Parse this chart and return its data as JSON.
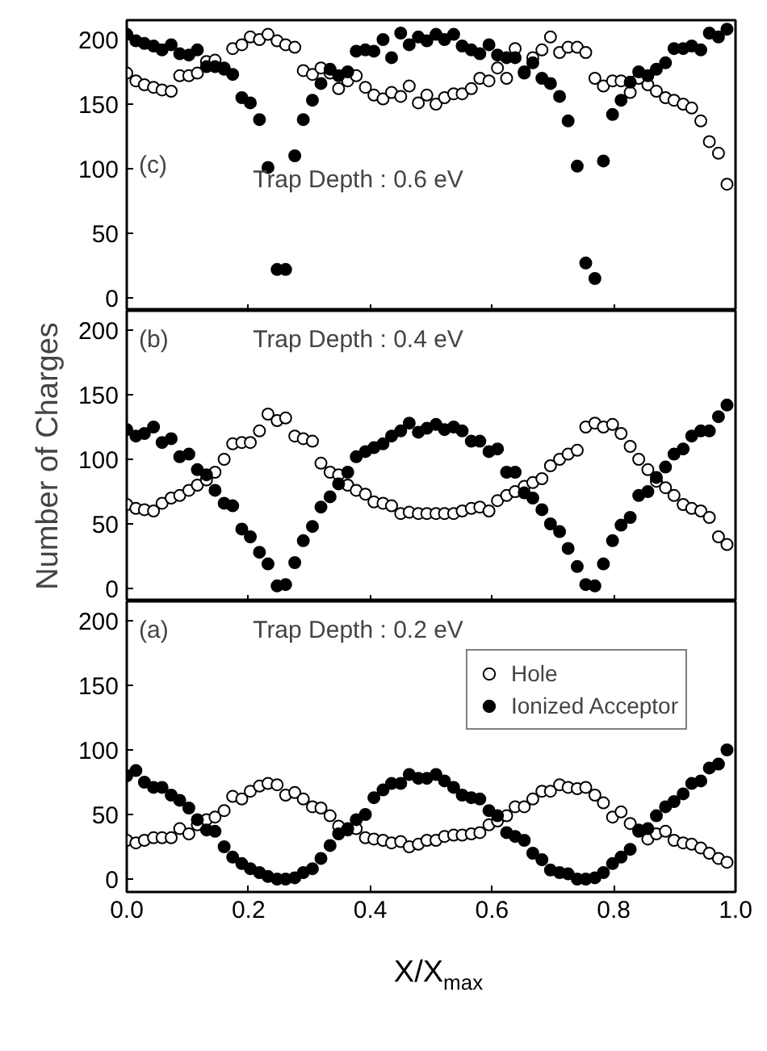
{
  "chart_data": [
    {
      "type": "scatter",
      "annotations": [
        "(c)",
        "Trap Depth : 0.6 eV"
      ],
      "xlim": [
        0,
        1
      ],
      "ylim": [
        -10,
        215
      ],
      "xticks": [
        {
          "value": 0,
          "label": null
        },
        {
          "value": 0.2,
          "label": null
        },
        {
          "value": 0.4,
          "label": null
        },
        {
          "value": 0.6,
          "label": null
        },
        {
          "value": 0.8,
          "label": null
        },
        {
          "value": 1,
          "label": null
        }
      ],
      "yticks": [
        0,
        50,
        100,
        150,
        200
      ],
      "tick_labels": "y",
      "marker": "circle",
      "grid": false,
      "legend": false,
      "x": [
        0.0,
        0.015,
        0.029,
        0.044,
        0.058,
        0.073,
        0.087,
        0.102,
        0.116,
        0.131,
        0.145,
        0.16,
        0.174,
        0.189,
        0.203,
        0.218,
        0.232,
        0.247,
        0.261,
        0.276,
        0.29,
        0.305,
        0.319,
        0.334,
        0.348,
        0.363,
        0.377,
        0.392,
        0.406,
        0.421,
        0.435,
        0.45,
        0.464,
        0.479,
        0.493,
        0.508,
        0.522,
        0.537,
        0.551,
        0.566,
        0.58,
        0.595,
        0.609,
        0.624,
        0.638,
        0.653,
        0.667,
        0.682,
        0.696,
        0.711,
        0.725,
        0.74,
        0.754,
        0.769,
        0.783,
        0.798,
        0.812,
        0.827,
        0.841,
        0.856,
        0.87,
        0.885,
        0.899,
        0.914,
        0.928,
        0.943,
        0.957,
        0.972,
        0.986
      ],
      "series": [
        {
          "color": "#000000",
          "values": [
            174,
            168,
            165,
            163,
            161,
            160,
            172,
            172,
            174,
            183,
            184,
            178,
            193,
            196,
            202,
            200,
            204,
            199,
            196,
            194,
            176,
            173,
            178,
            174,
            162,
            168,
            172,
            163,
            157,
            154,
            159,
            156,
            164,
            151,
            157,
            150,
            155,
            158,
            158,
            162,
            170,
            168,
            178,
            170,
            193,
            175,
            186,
            192,
            202,
            190,
            194,
            194,
            190,
            170,
            164,
            168,
            168,
            159,
            170,
            165,
            160,
            155,
            153,
            150,
            147,
            137,
            121,
            112,
            88
          ]
        },
        {
          "color": "#000000",
          "values": [
            204,
            199,
            197,
            195,
            192,
            196,
            189,
            188,
            192,
            179,
            179,
            177,
            173,
            155,
            151,
            138,
            101,
            22,
            22,
            110,
            138,
            153,
            166,
            177,
            172,
            175,
            191,
            192,
            191,
            200,
            186,
            205,
            196,
            202,
            199,
            204,
            200,
            204,
            195,
            192,
            189,
            196,
            188,
            186,
            186,
            174,
            182,
            170,
            166,
            156,
            137,
            102,
            27,
            15,
            106,
            142,
            153,
            167,
            175,
            172,
            177,
            182,
            193,
            193,
            195,
            192,
            205,
            202,
            208
          ]
        }
      ]
    },
    {
      "type": "scatter",
      "ylabel": "Number of Charges",
      "annotations": [
        "(b)",
        "Trap Depth : 0.4 eV"
      ],
      "xlim": [
        0,
        1
      ],
      "ylim": [
        -10,
        215
      ],
      "xticks": [
        {
          "value": 0,
          "label": null
        },
        {
          "value": 0.2,
          "label": null
        },
        {
          "value": 0.4,
          "label": null
        },
        {
          "value": 0.6,
          "label": null
        },
        {
          "value": 0.8,
          "label": null
        },
        {
          "value": 1,
          "label": null
        }
      ],
      "yticks": [
        0,
        50,
        100,
        150,
        200
      ],
      "tick_labels": "y",
      "marker": "circle",
      "grid": false,
      "legend": false,
      "x": [
        0.0,
        0.015,
        0.029,
        0.044,
        0.058,
        0.073,
        0.087,
        0.102,
        0.116,
        0.131,
        0.145,
        0.16,
        0.174,
        0.189,
        0.203,
        0.218,
        0.232,
        0.247,
        0.261,
        0.276,
        0.29,
        0.305,
        0.319,
        0.334,
        0.348,
        0.363,
        0.377,
        0.392,
        0.406,
        0.421,
        0.435,
        0.45,
        0.464,
        0.479,
        0.493,
        0.508,
        0.522,
        0.537,
        0.551,
        0.566,
        0.58,
        0.595,
        0.609,
        0.624,
        0.638,
        0.653,
        0.667,
        0.682,
        0.696,
        0.711,
        0.725,
        0.74,
        0.754,
        0.769,
        0.783,
        0.798,
        0.812,
        0.827,
        0.841,
        0.856,
        0.87,
        0.885,
        0.899,
        0.914,
        0.928,
        0.943,
        0.957,
        0.972,
        0.986
      ],
      "series": [
        {
          "color": "#000000",
          "values": [
            65,
            62,
            61,
            60,
            66,
            70,
            72,
            76,
            80,
            84,
            90,
            100,
            112,
            113,
            113,
            122,
            135,
            130,
            132,
            118,
            116,
            114,
            97,
            90,
            88,
            80,
            76,
            73,
            67,
            66,
            64,
            58,
            59,
            58,
            58,
            58,
            58,
            58,
            60,
            62,
            63,
            60,
            68,
            72,
            75,
            79,
            82,
            85,
            95,
            100,
            104,
            107,
            125,
            128,
            125,
            127,
            120,
            110,
            100,
            92,
            83,
            78,
            72,
            65,
            62,
            60,
            55,
            40,
            34
          ]
        },
        {
          "color": "#000000",
          "values": [
            123,
            118,
            120,
            125,
            113,
            116,
            102,
            104,
            92,
            88,
            76,
            66,
            64,
            46,
            40,
            28,
            19,
            2,
            3,
            20,
            37,
            48,
            63,
            71,
            81,
            90,
            102,
            106,
            109,
            112,
            118,
            122,
            128,
            121,
            124,
            127,
            123,
            125,
            122,
            114,
            114,
            106,
            108,
            90,
            90,
            74,
            70,
            61,
            50,
            44,
            31,
            17,
            3,
            2,
            19,
            37,
            49,
            55,
            72,
            75,
            86,
            94,
            104,
            108,
            118,
            122,
            122,
            133,
            142
          ]
        }
      ]
    },
    {
      "type": "scatter",
      "xlabel": "X/X$_{max}$",
      "annotations": [
        "(a)",
        "Trap Depth : 0.2 eV"
      ],
      "xlim": [
        0,
        1
      ],
      "ylim": [
        -10,
        215
      ],
      "xticks": [
        {
          "value": 0,
          "label": "0.0"
        },
        {
          "value": 0.2,
          "label": "0.2"
        },
        {
          "value": 0.4,
          "label": "0.4"
        },
        {
          "value": 0.6,
          "label": "0.6"
        },
        {
          "value": 0.8,
          "label": "0.8"
        },
        {
          "value": 1,
          "label": "1.0"
        }
      ],
      "yticks": [
        0,
        50,
        100,
        150,
        200
      ],
      "marker": "circle",
      "grid": false,
      "legend": "top right",
      "x": [
        0.0,
        0.015,
        0.029,
        0.044,
        0.058,
        0.073,
        0.087,
        0.102,
        0.116,
        0.131,
        0.145,
        0.16,
        0.174,
        0.189,
        0.203,
        0.218,
        0.232,
        0.247,
        0.261,
        0.276,
        0.29,
        0.305,
        0.319,
        0.334,
        0.348,
        0.363,
        0.377,
        0.392,
        0.406,
        0.421,
        0.435,
        0.45,
        0.464,
        0.479,
        0.493,
        0.508,
        0.522,
        0.537,
        0.551,
        0.566,
        0.58,
        0.595,
        0.609,
        0.624,
        0.638,
        0.653,
        0.667,
        0.682,
        0.696,
        0.711,
        0.725,
        0.74,
        0.754,
        0.769,
        0.783,
        0.798,
        0.812,
        0.827,
        0.841,
        0.856,
        0.87,
        0.885,
        0.899,
        0.914,
        0.928,
        0.943,
        0.957,
        0.972,
        0.986
      ],
      "series": [
        {
          "name": "Hole",
          "color": "#000000",
          "values": [
            30,
            28,
            30,
            32,
            32,
            32,
            39,
            35,
            42,
            46,
            48,
            53,
            64,
            62,
            68,
            72,
            74,
            73,
            65,
            67,
            62,
            56,
            55,
            49,
            41,
            38,
            39,
            32,
            31,
            30,
            28,
            29,
            25,
            27,
            30,
            30,
            33,
            34,
            34,
            35,
            36,
            42,
            45,
            49,
            56,
            56,
            62,
            68,
            68,
            73,
            71,
            70,
            71,
            65,
            59,
            48,
            52,
            43,
            37,
            31,
            35,
            37,
            30,
            28,
            27,
            24,
            20,
            16,
            13
          ]
        },
        {
          "name": "Ionized Acceptor",
          "color": "#000000",
          "values": [
            80,
            84,
            75,
            71,
            71,
            65,
            61,
            55,
            46,
            38,
            37,
            25,
            17,
            12,
            8,
            5,
            2,
            0,
            0,
            1,
            5,
            8,
            16,
            26,
            35,
            39,
            46,
            50,
            63,
            69,
            74,
            74,
            81,
            78,
            78,
            81,
            76,
            71,
            65,
            63,
            62,
            53,
            49,
            36,
            33,
            30,
            20,
            15,
            7,
            5,
            4,
            0,
            0,
            1,
            5,
            12,
            17,
            23,
            38,
            39,
            49,
            56,
            60,
            66,
            74,
            76,
            86,
            89,
            100
          ]
        }
      ]
    }
  ]
}
